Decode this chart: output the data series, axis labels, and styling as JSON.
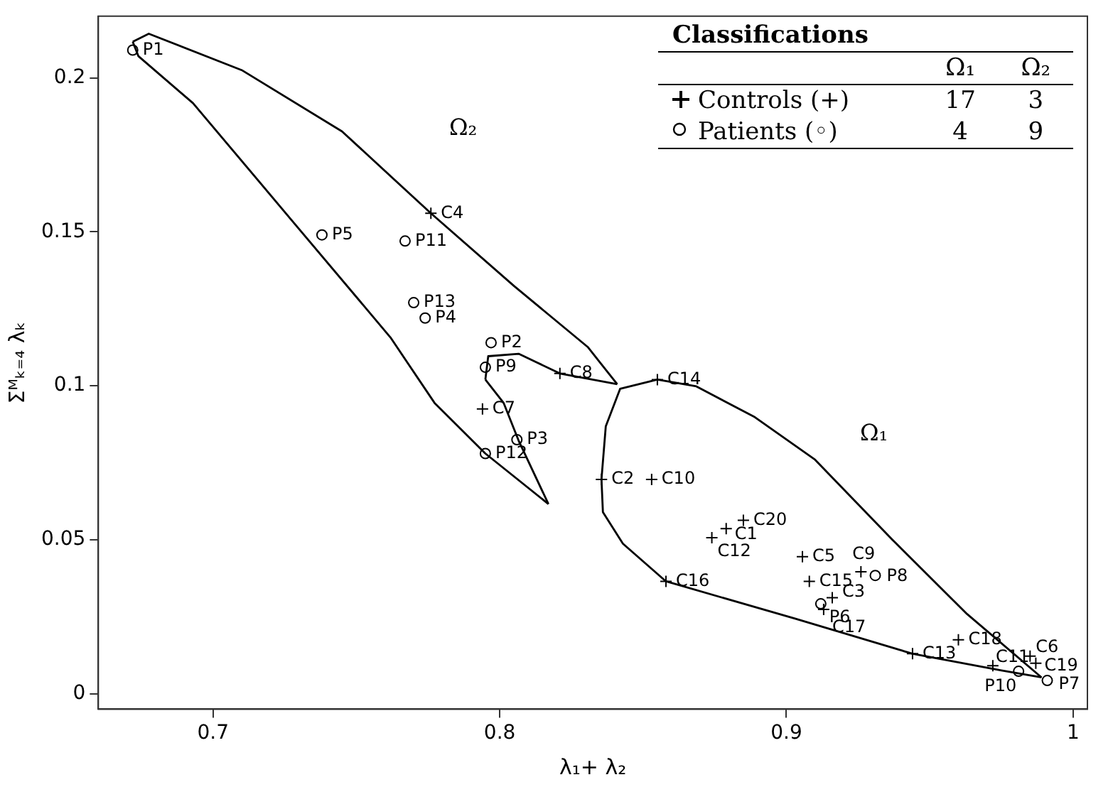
{
  "chart_data": {
    "type": "scatter",
    "xlabel": "λ₁+ λ₂",
    "ylabel": "Σᴹₖ₌₄ λₖ",
    "xlim": [
      0.66,
      1.005
    ],
    "ylim": [
      -0.005,
      0.22
    ],
    "xticks": [
      0.7,
      0.8,
      0.9,
      1
    ],
    "yticks": [
      0,
      0.05,
      0.1,
      0.15,
      0.2
    ],
    "grid": false,
    "legend": "top right",
    "annotations": [
      "Classifications",
      "Ω₁",
      "Ω₂",
      "17",
      "3",
      "4",
      "9",
      "Ω₂",
      "Ω₁"
    ],
    "series": [
      {
        "name": "Controls (+)",
        "marker": "cross",
        "color": "#000000",
        "x": [
          0.879,
          0.8355,
          0.916,
          0.776,
          0.9056,
          0.985,
          0.794,
          0.821,
          0.926,
          0.853,
          0.972,
          0.874,
          0.944,
          0.855,
          0.908,
          0.858,
          0.913,
          0.96,
          0.987,
          0.885
        ],
        "values": [
          0.0536,
          0.0696,
          0.0312,
          0.156,
          0.0445,
          0.0122,
          0.0925,
          0.104,
          0.0396,
          0.0696,
          0.0091,
          0.0507,
          0.013,
          0.102,
          0.0365,
          0.0365,
          0.0274,
          0.0175,
          0.0099,
          0.0563
        ],
        "value_labels": [
          "C1",
          "C2",
          "C3",
          "C4",
          "C5",
          "C6",
          "C7",
          "C8",
          "C9",
          "C10",
          "C11",
          "C12",
          "C13",
          "C14",
          "C15",
          "C16",
          "C17",
          "C18",
          "C19",
          "C20"
        ]
      },
      {
        "name": "Patients (◦)",
        "marker": "circle",
        "color": "#000000",
        "x": [
          0.672,
          0.797,
          0.806,
          0.774,
          0.738,
          0.912,
          0.991,
          0.931,
          0.795,
          0.981,
          0.767,
          0.795,
          0.77
        ],
        "values": [
          0.209,
          0.114,
          0.0825,
          0.122,
          0.149,
          0.0292,
          0.0043,
          0.0384,
          0.106,
          0.0073,
          0.147,
          0.078,
          0.127
        ],
        "value_labels": [
          "P1",
          "P2",
          "P3",
          "P4",
          "P5",
          "P6",
          "P7",
          "P8",
          "P9",
          "P10",
          "P11",
          "P12",
          "P13"
        ]
      },
      {
        "type": "line",
        "marker": "none",
        "line_style": "solid",
        "color": "#000000",
        "x": [
          0.672,
          0.6776,
          0.71,
          0.745,
          0.776,
          0.805,
          0.8307,
          0.841
        ],
        "values": [
          0.2117,
          0.2143,
          0.2025,
          0.1826,
          0.156,
          0.1324,
          0.1126,
          0.1005
        ]
      },
      {
        "type": "line",
        "marker": "none",
        "line_style": "solid",
        "color": "#000000",
        "x": [
          0.795,
          0.796,
          0.8066,
          0.821,
          0.841
        ],
        "values": [
          0.102,
          0.1096,
          0.1104,
          0.104,
          0.1005
        ]
      },
      {
        "type": "line",
        "marker": "none",
        "line_style": "solid",
        "color": "#000000",
        "x": [
          0.795,
          0.8014,
          0.8066,
          0.817
        ],
        "values": [
          0.102,
          0.0944,
          0.0822,
          0.0616
        ]
      },
      {
        "type": "line",
        "marker": "none",
        "line_style": "solid",
        "color": "#000000",
        "x": [
          0.672,
          0.674,
          0.693,
          0.7275,
          0.7619,
          0.7773,
          0.795,
          0.817
        ],
        "values": [
          0.2117,
          0.207,
          0.1918,
          0.1537,
          0.1157,
          0.0944,
          0.078,
          0.0616
        ]
      },
      {
        "type": "line",
        "marker": "none",
        "line_style": "solid",
        "color": "#000000",
        "x": [
          0.8355,
          0.837,
          0.842,
          0.855,
          0.8686,
          0.889,
          0.91,
          0.937,
          0.963,
          0.989
        ],
        "values": [
          0.0696,
          0.0868,
          0.099,
          0.102,
          0.0998,
          0.0898,
          0.076,
          0.05,
          0.0259,
          0.0053
        ]
      },
      {
        "type": "line",
        "marker": "none",
        "line_style": "solid",
        "color": "#000000",
        "x": [
          0.8355,
          0.836,
          0.843,
          0.858,
          0.903,
          0.944,
          0.975,
          0.989
        ],
        "values": [
          0.0696,
          0.059,
          0.0487,
          0.0365,
          0.0244,
          0.013,
          0.0076,
          0.0053
        ]
      }
    ]
  }
}
